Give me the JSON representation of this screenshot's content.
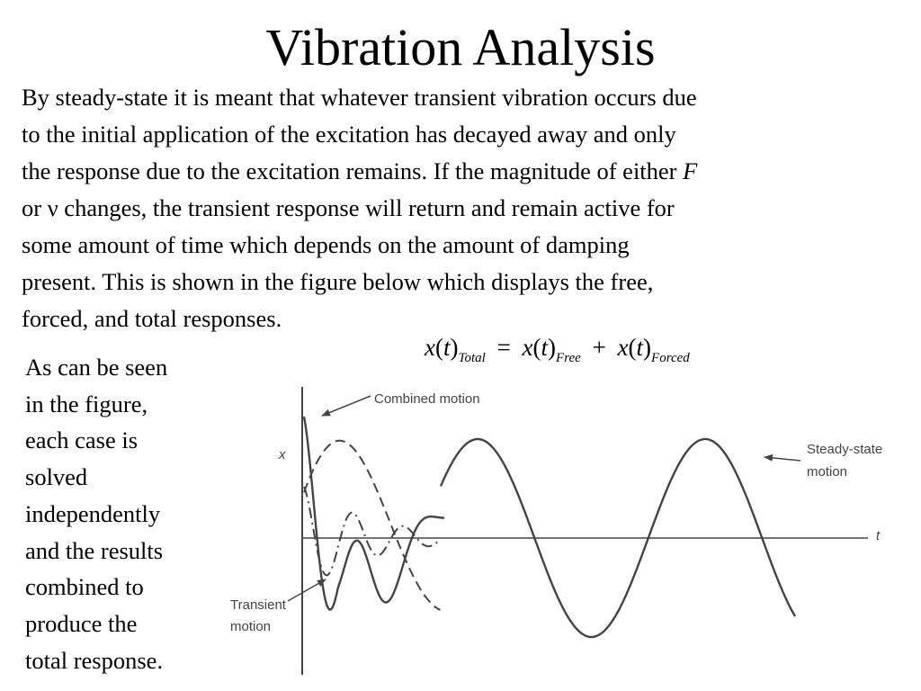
{
  "title": "Vibration Analysis",
  "paragraph": {
    "lines": [
      [
        "By steady-state it is meant that whatever transient vibration occurs due"
      ],
      [
        "to the initial application of the excitation has decayed away and only"
      ],
      [
        "the response due to the excitation remains.  If the magnitude of either ",
        "F"
      ],
      [
        "or ν changes, the transient response will return and remain active for"
      ],
      [
        "some amount of time which depends on the amount of damping"
      ],
      [
        "present.  This is shown in the figure below which displays the free,"
      ],
      [
        "forced, and total responses."
      ]
    ]
  },
  "equation": {
    "x": "x",
    "t": "t",
    "open": "(",
    "close": ")",
    "sub_total": "Total",
    "sub_free": "Free",
    "sub_forced": "Forced",
    "equals": "=",
    "plus": "+"
  },
  "side_text": {
    "lines": [
      "As can be seen",
      "in the figure,",
      "each case is",
      "solved",
      "independently",
      "and the results",
      "combined to",
      "produce the",
      "total response."
    ]
  },
  "figure": {
    "labels": {
      "combined": "Combined motion",
      "steady_1": "Steady-state",
      "steady_2": "motion",
      "transient_1": "Transient",
      "transient_2": "motion",
      "y_axis": "x",
      "x_axis": "t"
    },
    "colors": {
      "curve": "#444444",
      "label": "#444444"
    }
  }
}
